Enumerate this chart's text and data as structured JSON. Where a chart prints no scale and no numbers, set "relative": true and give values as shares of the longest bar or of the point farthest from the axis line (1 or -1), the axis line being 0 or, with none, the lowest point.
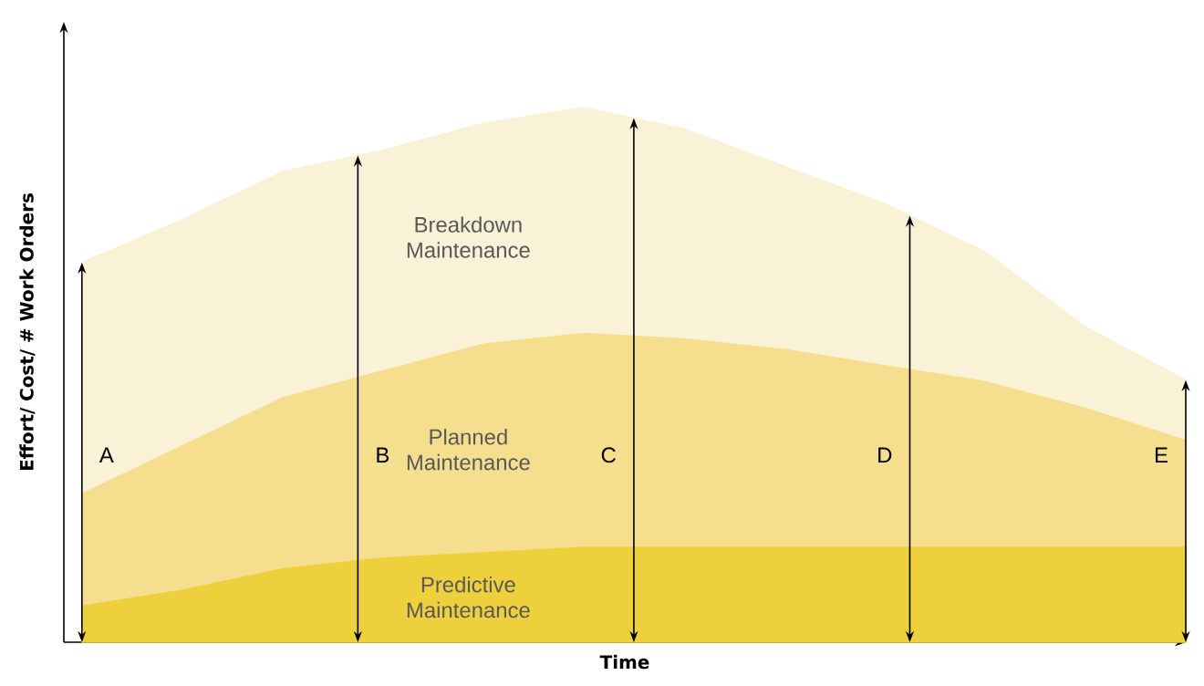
{
  "chart_data": {
    "type": "area",
    "stacked": true,
    "relative": true,
    "xlabel": "Time",
    "ylabel": "Effort/ Cost/ # Work Orders",
    "categories": [
      null,
      null,
      null,
      null,
      null,
      null,
      null,
      null,
      null,
      null,
      null,
      null
    ],
    "series": [
      {
        "name": "Predictive Maintenance",
        "color": "#edd03c",
        "values": [
          0.07,
          0.1,
          0.14,
          0.16,
          0.17,
          0.18,
          0.18,
          0.18,
          0.18,
          0.18,
          0.18,
          0.18
        ]
      },
      {
        "name": "Planned Maintenance",
        "color": "#f5df8e",
        "values": [
          0.21,
          0.27,
          0.32,
          0.35,
          0.39,
          0.4,
          0.39,
          0.37,
          0.34,
          0.31,
          0.26,
          0.2
        ]
      },
      {
        "name": "Breakdown Maintenance",
        "color": "#f9f2d6",
        "values": [
          0.43,
          0.42,
          0.42,
          0.41,
          0.41,
          0.42,
          0.39,
          0.34,
          0.3,
          0.24,
          0.15,
          0.11
        ]
      }
    ],
    "annotations": [
      "A",
      "B",
      "C",
      "D",
      "E"
    ],
    "legend": false
  }
}
